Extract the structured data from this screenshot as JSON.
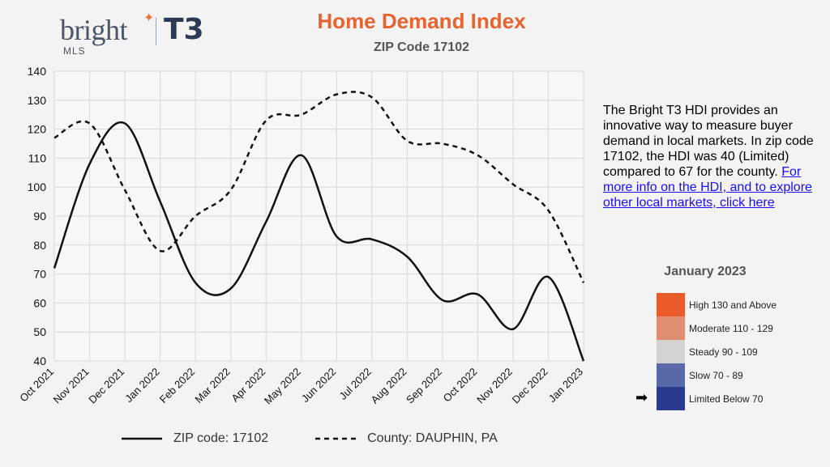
{
  "logo": {
    "brand": "bright",
    "sub": "MLS",
    "partner": "T3"
  },
  "title": "Home Demand Index",
  "subtitle": "ZIP Code 17102",
  "info": {
    "text": "The Bright T3 HDI provides an innovative way to measure buyer demand in local markets. In zip code 17102, the HDI was 40 (Limited) compared to 67 for the county.",
    "link_text": "For more info on the HDI, and to explore other local markets, click here"
  },
  "key": {
    "title": "January 2023",
    "levels": [
      {
        "label": "High 130 and Above",
        "color": "#ea5b2a",
        "current": false
      },
      {
        "label": "Moderate 110 - 129",
        "color": "#e08e72",
        "current": false
      },
      {
        "label": "Steady 90 - 109",
        "color": "#d3d3d3",
        "current": false
      },
      {
        "label": "Slow 70 - 89",
        "color": "#5968a8",
        "current": false
      },
      {
        "label": "Limited Below 70",
        "color": "#2a3a8e",
        "current": true
      }
    ]
  },
  "colors": {
    "title": "#e8632d",
    "line": "#111111",
    "grid": "#d9d9d9",
    "link": "#1a0dff"
  },
  "chart_data": {
    "type": "line",
    "categories": [
      "Oct 2021",
      "Nov 2021",
      "Dec 2021",
      "Jan 2022",
      "Feb 2022",
      "Mar 2022",
      "Apr 2022",
      "May 2022",
      "Jun 2022",
      "Jul 2022",
      "Aug 2022",
      "Sep 2022",
      "Oct 2022",
      "Nov 2022",
      "Dec 2022",
      "Jan 2023"
    ],
    "series": [
      {
        "name": "ZIP code: 17102",
        "style": "solid",
        "values": [
          72,
          108,
          122,
          95,
          67,
          65,
          88,
          111,
          83,
          82,
          76,
          61,
          63,
          51,
          69,
          40
        ]
      },
      {
        "name": "County: DAUPHIN, PA",
        "style": "dashed",
        "values": [
          117,
          122,
          99,
          78,
          90,
          99,
          123,
          125,
          132,
          131,
          116,
          115,
          111,
          101,
          92,
          67
        ]
      }
    ],
    "yticks": [
      40,
      50,
      60,
      70,
      80,
      90,
      100,
      110,
      120,
      130,
      140
    ],
    "ylim": [
      40,
      140
    ],
    "grid": true,
    "legend": "bottom"
  }
}
